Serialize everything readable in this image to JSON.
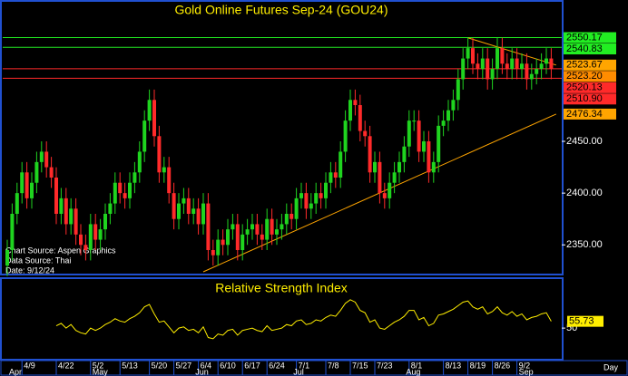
{
  "chart_data": {
    "type": "candlestick",
    "title": "Gold Online Futures Sep-24 (GOU24)",
    "annotations": [
      "Chart Source: Aspen Graphics",
      "Data Source: Thai",
      "Date: 9/12/24"
    ],
    "x_unit": "Day",
    "x": [
      null,
      null,
      null,
      "4/9",
      null,
      null,
      null,
      null,
      null,
      null,
      "4/22",
      null,
      null,
      null,
      null,
      null,
      null,
      "5/2",
      null,
      null,
      null,
      null,
      null,
      "5/13",
      null,
      null,
      null,
      null,
      null,
      "5/20",
      null,
      null,
      null,
      null,
      "5/27",
      null,
      null,
      null,
      null,
      "6/4",
      null,
      null,
      null,
      "6/10",
      null,
      null,
      null,
      null,
      "6/17",
      null,
      null,
      null,
      null,
      "6/24",
      null,
      null,
      null,
      null,
      null,
      "7/1",
      null,
      null,
      null,
      null,
      null,
      "7/8",
      null,
      null,
      null,
      null,
      "7/15",
      null,
      null,
      null,
      null,
      "7/23",
      null,
      null,
      null,
      null,
      null,
      null,
      "8/1",
      null,
      null,
      null,
      null,
      null,
      null,
      "8/13",
      null,
      null,
      null,
      null,
      "8/19",
      null,
      null,
      null,
      null,
      "8/26",
      null,
      null,
      null,
      null,
      "9/2",
      null,
      null,
      null,
      null,
      null,
      null,
      null
    ],
    "months": [
      "Apr",
      null,
      null,
      null,
      null,
      null,
      null,
      null,
      null,
      null,
      null,
      null,
      null,
      null,
      null,
      null,
      null,
      "May",
      null,
      null,
      null,
      null,
      null,
      null,
      null,
      null,
      null,
      null,
      null,
      null,
      null,
      null,
      null,
      null,
      null,
      null,
      null,
      null,
      "Jun",
      null,
      null,
      null,
      null,
      null,
      null,
      null,
      null,
      null,
      null,
      null,
      null,
      null,
      null,
      null,
      null,
      null,
      null,
      null,
      "Jul",
      null,
      null,
      null,
      null,
      null,
      null,
      null,
      null,
      null,
      null,
      null,
      null,
      null,
      null,
      null,
      null,
      null,
      null,
      null,
      null,
      null,
      null,
      "Aug",
      null,
      null,
      null,
      null,
      null,
      null,
      null,
      null,
      null,
      null,
      null,
      null,
      null,
      null,
      null,
      null,
      null,
      null,
      null,
      null,
      null,
      null,
      "Sep",
      null,
      null,
      null,
      null,
      null,
      null,
      null
    ],
    "open": [
      2330,
      2345,
      2380,
      2400,
      2420,
      2395,
      2410,
      2430,
      2440,
      2425,
      2415,
      2380,
      2395,
      2370,
      2385,
      2360,
      2350,
      2345,
      2370,
      2355,
      2365,
      2380,
      2390,
      2410,
      2400,
      2395,
      2410,
      2420,
      2440,
      2470,
      2490,
      2455,
      2420,
      2425,
      2400,
      2375,
      2390,
      2395,
      2380,
      2385,
      2370,
      2390,
      2345,
      2340,
      2355,
      2350,
      2365,
      2370,
      2345,
      2360,
      2365,
      2370,
      2360,
      2355,
      2375,
      2360,
      2365,
      2370,
      2380,
      2375,
      2395,
      2400,
      2385,
      2390,
      2400,
      2395,
      2410,
      2420,
      2415,
      2440,
      2470,
      2490,
      2485,
      2460,
      2455,
      2420,
      2430,
      2400,
      2395,
      2410,
      2420,
      2430,
      2445,
      2470,
      2470,
      2440,
      2450,
      2420,
      2430,
      2465,
      2470,
      2480,
      2490,
      2510,
      2530,
      2540,
      2525,
      2520,
      2530,
      2510,
      2520,
      2540,
      2525,
      2520,
      2530,
      2520,
      2525,
      2510,
      2515,
      2520,
      2525,
      2530
    ],
    "high": [
      2355,
      2390,
      2410,
      2430,
      2430,
      2420,
      2440,
      2450,
      2450,
      2435,
      2425,
      2405,
      2405,
      2395,
      2395,
      2370,
      2360,
      2380,
      2380,
      2375,
      2390,
      2400,
      2420,
      2420,
      2410,
      2420,
      2430,
      2450,
      2480,
      2500,
      2500,
      2465,
      2435,
      2435,
      2410,
      2400,
      2405,
      2405,
      2395,
      2395,
      2400,
      2400,
      2355,
      2365,
      2365,
      2375,
      2380,
      2380,
      2370,
      2375,
      2380,
      2380,
      2370,
      2385,
      2385,
      2375,
      2380,
      2390,
      2390,
      2405,
      2410,
      2410,
      2400,
      2410,
      2410,
      2420,
      2430,
      2430,
      2450,
      2480,
      2500,
      2500,
      2495,
      2470,
      2465,
      2440,
      2440,
      2410,
      2420,
      2430,
      2440,
      2455,
      2480,
      2480,
      2480,
      2460,
      2460,
      2440,
      2475,
      2480,
      2490,
      2500,
      2520,
      2540,
      2550,
      2550,
      2535,
      2540,
      2540,
      2530,
      2550,
      2550,
      2535,
      2540,
      2540,
      2535,
      2535,
      2525,
      2530,
      2535,
      2540,
      2540
    ],
    "low": [
      2320,
      2335,
      2370,
      2390,
      2385,
      2385,
      2400,
      2420,
      2415,
      2405,
      2370,
      2370,
      2360,
      2360,
      2350,
      2340,
      2335,
      2335,
      2345,
      2345,
      2355,
      2370,
      2380,
      2390,
      2385,
      2385,
      2400,
      2410,
      2430,
      2460,
      2445,
      2410,
      2410,
      2390,
      2365,
      2365,
      2380,
      2370,
      2370,
      2360,
      2360,
      2335,
      2330,
      2330,
      2340,
      2340,
      2355,
      2335,
      2335,
      2350,
      2355,
      2350,
      2345,
      2345,
      2350,
      2350,
      2355,
      2360,
      2365,
      2365,
      2385,
      2375,
      2375,
      2380,
      2385,
      2385,
      2400,
      2405,
      2405,
      2430,
      2460,
      2475,
      2450,
      2445,
      2410,
      2410,
      2390,
      2385,
      2385,
      2400,
      2410,
      2420,
      2435,
      2460,
      2430,
      2430,
      2410,
      2410,
      2420,
      2455,
      2460,
      2470,
      2480,
      2500,
      2520,
      2515,
      2510,
      2510,
      2500,
      2500,
      2510,
      2515,
      2510,
      2510,
      2510,
      2510,
      2500,
      2500,
      2505,
      2510,
      2515,
      2510
    ],
    "close": [
      2345,
      2380,
      2400,
      2420,
      2395,
      2410,
      2430,
      2440,
      2425,
      2415,
      2380,
      2395,
      2370,
      2385,
      2360,
      2350,
      2345,
      2370,
      2355,
      2365,
      2380,
      2390,
      2410,
      2400,
      2395,
      2410,
      2420,
      2440,
      2470,
      2490,
      2455,
      2420,
      2425,
      2400,
      2375,
      2390,
      2395,
      2380,
      2385,
      2370,
      2390,
      2345,
      2340,
      2355,
      2350,
      2365,
      2370,
      2345,
      2360,
      2365,
      2370,
      2360,
      2355,
      2375,
      2360,
      2365,
      2370,
      2380,
      2375,
      2395,
      2400,
      2385,
      2390,
      2400,
      2395,
      2410,
      2420,
      2415,
      2440,
      2470,
      2490,
      2485,
      2460,
      2455,
      2420,
      2430,
      2400,
      2395,
      2410,
      2420,
      2430,
      2445,
      2470,
      2470,
      2440,
      2450,
      2420,
      2430,
      2465,
      2470,
      2480,
      2490,
      2510,
      2530,
      2540,
      2525,
      2520,
      2530,
      2510,
      2520,
      2540,
      2525,
      2520,
      2530,
      2520,
      2525,
      2510,
      2515,
      2520,
      2525,
      2530,
      2520
    ],
    "up_color": "#1fd41f",
    "down_color": "#ff2a2a",
    "ylim": [
      2324,
      2569
    ],
    "yticks": [
      {
        "value": 2350,
        "label": "2350.00"
      },
      {
        "value": 2400,
        "label": "2400.00"
      },
      {
        "value": 2450,
        "label": "2450.00"
      }
    ],
    "levels": [
      {
        "value": 2550.17,
        "label": "2550.17",
        "color": "#22ee22",
        "line": true
      },
      {
        "value": 2540.83,
        "label": "2540.83",
        "color": "#22ee22",
        "line": true
      },
      {
        "value": 2523.67,
        "label": "2523.67",
        "color": "#ffa500",
        "line": false
      },
      {
        "value": 2523.2,
        "label": "2523.20",
        "color": "#ff8c00",
        "line": false
      },
      {
        "value": 2520.13,
        "label": "2520.13",
        "color": "#ff2a2a",
        "line": true
      },
      {
        "value": 2510.9,
        "label": "2510.90",
        "color": "#ff2a2a",
        "line": true
      },
      {
        "value": 2476.34,
        "label": "2476.34",
        "color": "#ffa500",
        "line": false
      }
    ],
    "trendlines": [
      {
        "x": [
          40,
          112
        ],
        "y": [
          2324,
          2476.34
        ],
        "color": "#ffa500"
      },
      {
        "x": [
          94,
          112
        ],
        "y": [
          2550,
          2523.67
        ],
        "color": "#ffa500"
      }
    ],
    "rsi": {
      "title": "Relative Strength Index",
      "color": "#ffee00",
      "ylim": [
        24,
        90
      ],
      "yticks": [
        50
      ],
      "values": [
        null,
        null,
        null,
        null,
        null,
        null,
        null,
        null,
        null,
        null,
        52,
        54,
        50,
        53,
        48,
        46,
        45,
        50,
        48,
        50,
        53,
        55,
        58,
        56,
        55,
        58,
        60,
        63,
        68,
        70,
        62,
        55,
        56,
        51,
        46,
        50,
        51,
        48,
        49,
        46,
        51,
        42,
        41,
        45,
        44,
        48,
        49,
        44,
        48,
        49,
        50,
        48,
        47,
        52,
        48,
        49,
        50,
        53,
        52,
        56,
        57,
        53,
        54,
        57,
        56,
        59,
        61,
        60,
        65,
        71,
        74,
        72,
        65,
        63,
        55,
        57,
        50,
        49,
        52,
        55,
        57,
        60,
        65,
        65,
        57,
        59,
        52,
        54,
        61,
        62,
        64,
        66,
        69,
        72,
        73,
        68,
        66,
        68,
        62,
        64,
        68,
        63,
        61,
        64,
        60,
        62,
        57,
        59,
        60,
        62,
        63,
        55.73
      ]
    }
  }
}
